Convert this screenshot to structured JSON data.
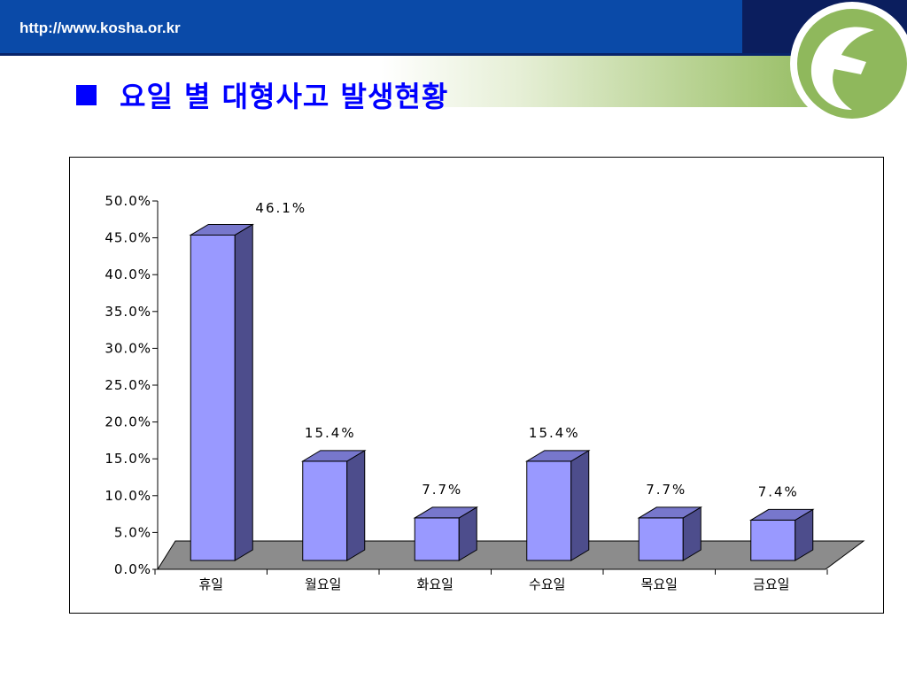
{
  "header": {
    "url": "http://www.kosha.or.kr",
    "logo_icon": "kosha-logo-icon",
    "colors": {
      "bar": "#0a4aa8",
      "bar_dark": "#0b1e5e",
      "green": "#8fb85c"
    }
  },
  "slide": {
    "title": "요일 별 대형사고 발생현황",
    "title_color": "#0000ff"
  },
  "chart_data": {
    "type": "bar",
    "categories": [
      "휴일",
      "월요일",
      "화요일",
      "수요일",
      "목요일",
      "금요일"
    ],
    "values": [
      46.1,
      15.4,
      7.7,
      15.4,
      7.7,
      7.4
    ],
    "value_labels": [
      "46.1%",
      "15.4%",
      "7.7%",
      "15.4%",
      "7.7%",
      "7.4%"
    ],
    "highlight_index": 0,
    "highlight_color": "#ff0000",
    "bar_color": "#9999ff",
    "y_ticks": [
      "0.0%",
      "5.0%",
      "10.0%",
      "15.0%",
      "20.0%",
      "25.0%",
      "30.0%",
      "35.0%",
      "40.0%",
      "45.0%",
      "50.0%"
    ],
    "ylim": [
      0,
      50
    ],
    "grid": false,
    "style": "3d"
  }
}
